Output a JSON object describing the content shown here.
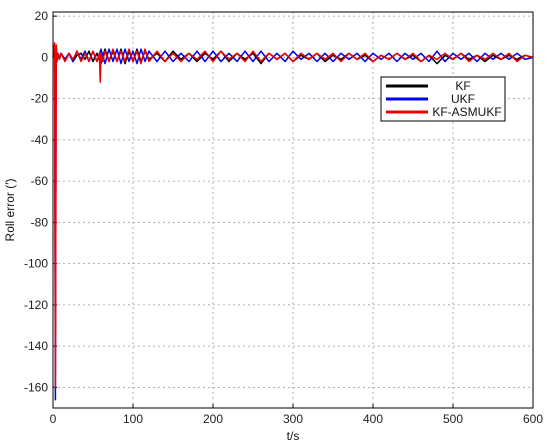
{
  "chart_data": {
    "type": "line",
    "xlabel": "t/s",
    "ylabel": "Roll error (′)",
    "xlim": [
      0,
      600
    ],
    "ylim": [
      -170,
      22
    ],
    "xticks": [
      0,
      100,
      200,
      300,
      400,
      500,
      600
    ],
    "yticks": [
      20,
      0,
      -20,
      -40,
      -60,
      -80,
      -100,
      -120,
      -140,
      -160
    ],
    "grid": true,
    "legend_position": "top-right",
    "series": [
      {
        "name": "KF",
        "color": "#000000",
        "x": [
          0,
          2,
          4,
          6,
          8,
          10,
          15,
          20,
          25,
          30,
          35,
          40,
          45,
          50,
          55,
          60,
          65,
          70,
          75,
          80,
          85,
          90,
          95,
          100,
          105,
          110,
          115,
          120,
          130,
          140,
          150,
          160,
          170,
          180,
          190,
          200,
          210,
          220,
          230,
          240,
          250,
          260,
          270,
          280,
          290,
          300,
          310,
          320,
          330,
          340,
          350,
          360,
          370,
          380,
          390,
          400,
          410,
          420,
          430,
          440,
          450,
          460,
          470,
          480,
          490,
          500,
          510,
          520,
          530,
          540,
          550,
          560,
          570,
          580,
          590,
          600
        ],
        "y": [
          0,
          1,
          -1,
          1,
          0,
          2,
          -1,
          2,
          -2,
          1,
          2,
          -1,
          3,
          -2,
          2,
          -3,
          4,
          -2,
          3,
          -2,
          4,
          -3,
          3,
          -2,
          4,
          -2,
          3,
          -1,
          2,
          -2,
          3,
          -1,
          2,
          -2,
          2,
          -1,
          3,
          -2,
          2,
          -1,
          2,
          -3,
          2,
          -1,
          2,
          -2,
          1,
          -1,
          2,
          -2,
          1,
          -1,
          2,
          -1,
          1,
          -2,
          1,
          -1,
          2,
          -1,
          1,
          -2,
          1,
          -3,
          1,
          -1,
          2,
          -1,
          1,
          -2,
          1,
          -1,
          1,
          -1,
          1,
          0
        ]
      },
      {
        "name": "UKF",
        "color": "#0000ee",
        "x": [
          0,
          2,
          3,
          4,
          5,
          6,
          8,
          10,
          15,
          20,
          25,
          30,
          35,
          40,
          45,
          50,
          55,
          60,
          65,
          70,
          75,
          80,
          85,
          90,
          95,
          100,
          105,
          110,
          115,
          120,
          130,
          140,
          150,
          160,
          170,
          180,
          190,
          200,
          210,
          220,
          230,
          240,
          250,
          260,
          270,
          280,
          290,
          300,
          310,
          320,
          330,
          340,
          350,
          360,
          370,
          380,
          390,
          400,
          410,
          420,
          430,
          440,
          450,
          460,
          470,
          480,
          490,
          500,
          510,
          520,
          530,
          540,
          550,
          560,
          570,
          580,
          590,
          600
        ],
        "y": [
          0,
          2,
          -166,
          5,
          -2,
          2,
          -1,
          2,
          -1,
          2,
          -2,
          3,
          -1,
          3,
          -2,
          3,
          -2,
          4,
          -3,
          4,
          -2,
          4,
          -3,
          4,
          -2,
          3,
          -3,
          4,
          -2,
          3,
          -2,
          3,
          -2,
          2,
          -2,
          3,
          -2,
          3,
          -2,
          2,
          -2,
          3,
          -2,
          3,
          -2,
          2,
          -2,
          3,
          -1,
          2,
          -2,
          2,
          -2,
          2,
          -1,
          2,
          -2,
          2,
          -1,
          2,
          -2,
          2,
          -1,
          2,
          -2,
          3,
          -2,
          2,
          -1,
          2,
          -2,
          2,
          -1,
          2,
          -1,
          2,
          -1,
          0
        ]
      },
      {
        "name": "KF-ASMUKF",
        "color": "#ee0000",
        "x": [
          0,
          2,
          3,
          4,
          5,
          6,
          8,
          10,
          15,
          20,
          25,
          30,
          35,
          40,
          45,
          50,
          55,
          58,
          59,
          60,
          62,
          65,
          70,
          75,
          80,
          85,
          90,
          95,
          100,
          105,
          110,
          115,
          120,
          130,
          140,
          150,
          160,
          170,
          180,
          190,
          200,
          210,
          220,
          230,
          240,
          250,
          260,
          270,
          280,
          290,
          300,
          310,
          320,
          330,
          340,
          350,
          360,
          370,
          380,
          390,
          400,
          410,
          420,
          430,
          440,
          450,
          460,
          470,
          480,
          490,
          500,
          510,
          520,
          530,
          540,
          550,
          560,
          570,
          580,
          590,
          600
        ],
        "y": [
          0,
          7,
          -160,
          6,
          -1,
          2,
          -1,
          2,
          -2,
          2,
          -1,
          3,
          -2,
          2,
          -2,
          3,
          -2,
          2,
          -12,
          2,
          -2,
          3,
          -2,
          4,
          -2,
          3,
          -2,
          4,
          -2,
          3,
          -3,
          4,
          -2,
          3,
          -2,
          2,
          -2,
          2,
          -1,
          3,
          -2,
          3,
          -1,
          2,
          -2,
          3,
          -2,
          2,
          -1,
          2,
          -2,
          2,
          -1,
          2,
          -1,
          2,
          -2,
          2,
          -1,
          2,
          -2,
          1,
          -1,
          2,
          -1,
          2,
          -2,
          1,
          -1,
          2,
          -1,
          2,
          -2,
          1,
          -1,
          2,
          -1,
          2,
          -2,
          1,
          0
        ]
      }
    ]
  }
}
